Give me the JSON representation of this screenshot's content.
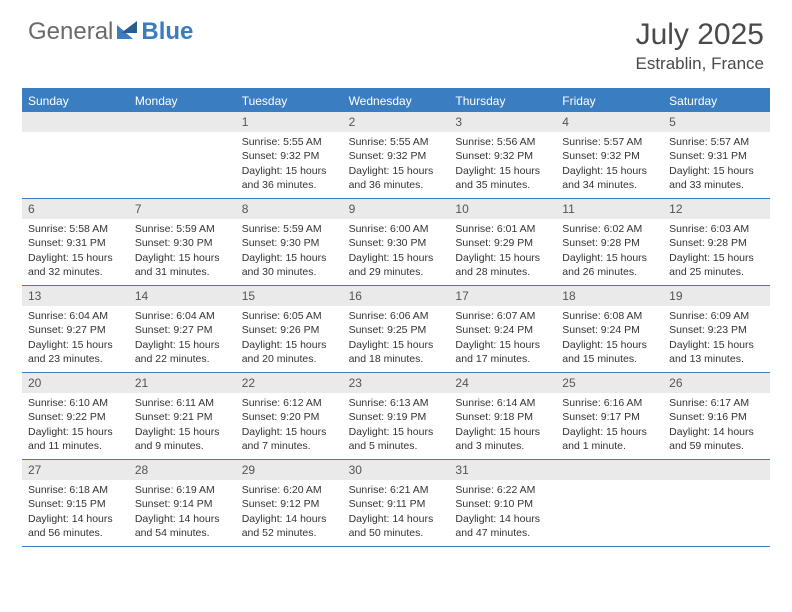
{
  "logo": {
    "general": "General",
    "blue": "Blue"
  },
  "title": "July 2025",
  "location": "Estrablin, France",
  "colors": {
    "header_bg": "#3a7ec1",
    "header_text": "#ffffff",
    "daynum_bg": "#eaeaea",
    "border": "#3a7ec1",
    "body_text": "#333333",
    "logo_gray": "#6a6a6a",
    "logo_blue": "#3a7ec1"
  },
  "day_headers": [
    "Sunday",
    "Monday",
    "Tuesday",
    "Wednesday",
    "Thursday",
    "Friday",
    "Saturday"
  ],
  "weeks": [
    [
      {
        "empty": true
      },
      {
        "empty": true
      },
      {
        "num": "1",
        "sunrise": "Sunrise: 5:55 AM",
        "sunset": "Sunset: 9:32 PM",
        "daylight": "Daylight: 15 hours and 36 minutes."
      },
      {
        "num": "2",
        "sunrise": "Sunrise: 5:55 AM",
        "sunset": "Sunset: 9:32 PM",
        "daylight": "Daylight: 15 hours and 36 minutes."
      },
      {
        "num": "3",
        "sunrise": "Sunrise: 5:56 AM",
        "sunset": "Sunset: 9:32 PM",
        "daylight": "Daylight: 15 hours and 35 minutes."
      },
      {
        "num": "4",
        "sunrise": "Sunrise: 5:57 AM",
        "sunset": "Sunset: 9:32 PM",
        "daylight": "Daylight: 15 hours and 34 minutes."
      },
      {
        "num": "5",
        "sunrise": "Sunrise: 5:57 AM",
        "sunset": "Sunset: 9:31 PM",
        "daylight": "Daylight: 15 hours and 33 minutes."
      }
    ],
    [
      {
        "num": "6",
        "sunrise": "Sunrise: 5:58 AM",
        "sunset": "Sunset: 9:31 PM",
        "daylight": "Daylight: 15 hours and 32 minutes."
      },
      {
        "num": "7",
        "sunrise": "Sunrise: 5:59 AM",
        "sunset": "Sunset: 9:30 PM",
        "daylight": "Daylight: 15 hours and 31 minutes."
      },
      {
        "num": "8",
        "sunrise": "Sunrise: 5:59 AM",
        "sunset": "Sunset: 9:30 PM",
        "daylight": "Daylight: 15 hours and 30 minutes."
      },
      {
        "num": "9",
        "sunrise": "Sunrise: 6:00 AM",
        "sunset": "Sunset: 9:30 PM",
        "daylight": "Daylight: 15 hours and 29 minutes."
      },
      {
        "num": "10",
        "sunrise": "Sunrise: 6:01 AM",
        "sunset": "Sunset: 9:29 PM",
        "daylight": "Daylight: 15 hours and 28 minutes."
      },
      {
        "num": "11",
        "sunrise": "Sunrise: 6:02 AM",
        "sunset": "Sunset: 9:28 PM",
        "daylight": "Daylight: 15 hours and 26 minutes."
      },
      {
        "num": "12",
        "sunrise": "Sunrise: 6:03 AM",
        "sunset": "Sunset: 9:28 PM",
        "daylight": "Daylight: 15 hours and 25 minutes."
      }
    ],
    [
      {
        "num": "13",
        "sunrise": "Sunrise: 6:04 AM",
        "sunset": "Sunset: 9:27 PM",
        "daylight": "Daylight: 15 hours and 23 minutes."
      },
      {
        "num": "14",
        "sunrise": "Sunrise: 6:04 AM",
        "sunset": "Sunset: 9:27 PM",
        "daylight": "Daylight: 15 hours and 22 minutes."
      },
      {
        "num": "15",
        "sunrise": "Sunrise: 6:05 AM",
        "sunset": "Sunset: 9:26 PM",
        "daylight": "Daylight: 15 hours and 20 minutes."
      },
      {
        "num": "16",
        "sunrise": "Sunrise: 6:06 AM",
        "sunset": "Sunset: 9:25 PM",
        "daylight": "Daylight: 15 hours and 18 minutes."
      },
      {
        "num": "17",
        "sunrise": "Sunrise: 6:07 AM",
        "sunset": "Sunset: 9:24 PM",
        "daylight": "Daylight: 15 hours and 17 minutes."
      },
      {
        "num": "18",
        "sunrise": "Sunrise: 6:08 AM",
        "sunset": "Sunset: 9:24 PM",
        "daylight": "Daylight: 15 hours and 15 minutes."
      },
      {
        "num": "19",
        "sunrise": "Sunrise: 6:09 AM",
        "sunset": "Sunset: 9:23 PM",
        "daylight": "Daylight: 15 hours and 13 minutes."
      }
    ],
    [
      {
        "num": "20",
        "sunrise": "Sunrise: 6:10 AM",
        "sunset": "Sunset: 9:22 PM",
        "daylight": "Daylight: 15 hours and 11 minutes."
      },
      {
        "num": "21",
        "sunrise": "Sunrise: 6:11 AM",
        "sunset": "Sunset: 9:21 PM",
        "daylight": "Daylight: 15 hours and 9 minutes."
      },
      {
        "num": "22",
        "sunrise": "Sunrise: 6:12 AM",
        "sunset": "Sunset: 9:20 PM",
        "daylight": "Daylight: 15 hours and 7 minutes."
      },
      {
        "num": "23",
        "sunrise": "Sunrise: 6:13 AM",
        "sunset": "Sunset: 9:19 PM",
        "daylight": "Daylight: 15 hours and 5 minutes."
      },
      {
        "num": "24",
        "sunrise": "Sunrise: 6:14 AM",
        "sunset": "Sunset: 9:18 PM",
        "daylight": "Daylight: 15 hours and 3 minutes."
      },
      {
        "num": "25",
        "sunrise": "Sunrise: 6:16 AM",
        "sunset": "Sunset: 9:17 PM",
        "daylight": "Daylight: 15 hours and 1 minute."
      },
      {
        "num": "26",
        "sunrise": "Sunrise: 6:17 AM",
        "sunset": "Sunset: 9:16 PM",
        "daylight": "Daylight: 14 hours and 59 minutes."
      }
    ],
    [
      {
        "num": "27",
        "sunrise": "Sunrise: 6:18 AM",
        "sunset": "Sunset: 9:15 PM",
        "daylight": "Daylight: 14 hours and 56 minutes."
      },
      {
        "num": "28",
        "sunrise": "Sunrise: 6:19 AM",
        "sunset": "Sunset: 9:14 PM",
        "daylight": "Daylight: 14 hours and 54 minutes."
      },
      {
        "num": "29",
        "sunrise": "Sunrise: 6:20 AM",
        "sunset": "Sunset: 9:12 PM",
        "daylight": "Daylight: 14 hours and 52 minutes."
      },
      {
        "num": "30",
        "sunrise": "Sunrise: 6:21 AM",
        "sunset": "Sunset: 9:11 PM",
        "daylight": "Daylight: 14 hours and 50 minutes."
      },
      {
        "num": "31",
        "sunrise": "Sunrise: 6:22 AM",
        "sunset": "Sunset: 9:10 PM",
        "daylight": "Daylight: 14 hours and 47 minutes."
      },
      {
        "empty": true
      },
      {
        "empty": true
      }
    ]
  ]
}
